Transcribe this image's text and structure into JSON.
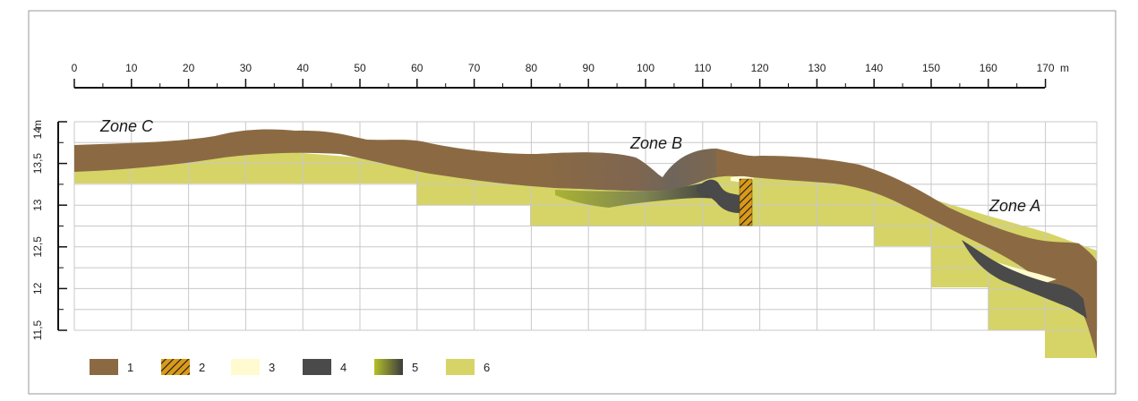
{
  "scale": {
    "ticks": [
      "0",
      "10",
      "20",
      "30",
      "40",
      "50",
      "60",
      "70",
      "80",
      "90",
      "100",
      "110",
      "120",
      "130",
      "140",
      "150",
      "160",
      "170"
    ],
    "unit": "m"
  },
  "elevation": {
    "ticks": [
      "14",
      "13,5",
      "13",
      "12,5",
      "12",
      "11,5"
    ],
    "unit": "m"
  },
  "zones": {
    "zone_c": "Zone C",
    "zone_b": "Zone B",
    "zone_a": "Zone A"
  },
  "legend": [
    {
      "key": "1",
      "label": "1",
      "color": "#8b6a43"
    },
    {
      "key": "2",
      "label": "2",
      "color": "#d99a1a"
    },
    {
      "key": "3",
      "label": "3",
      "color": "#fffad0"
    },
    {
      "key": "4",
      "label": "4",
      "color": "#4a4a4a"
    },
    {
      "key": "5",
      "label": "5",
      "color": "#9aa832"
    },
    {
      "key": "6",
      "label": "6",
      "color": "#d6d466"
    }
  ],
  "colors": {
    "soil": "#8b6a43",
    "hatch": "#d99a1a",
    "cream": "#fffad0",
    "dark": "#4a4a4a",
    "gradient_green": "#9aa832",
    "excavation": "#d6d466",
    "grid": "#c8c8c8",
    "frame": "#999999"
  }
}
